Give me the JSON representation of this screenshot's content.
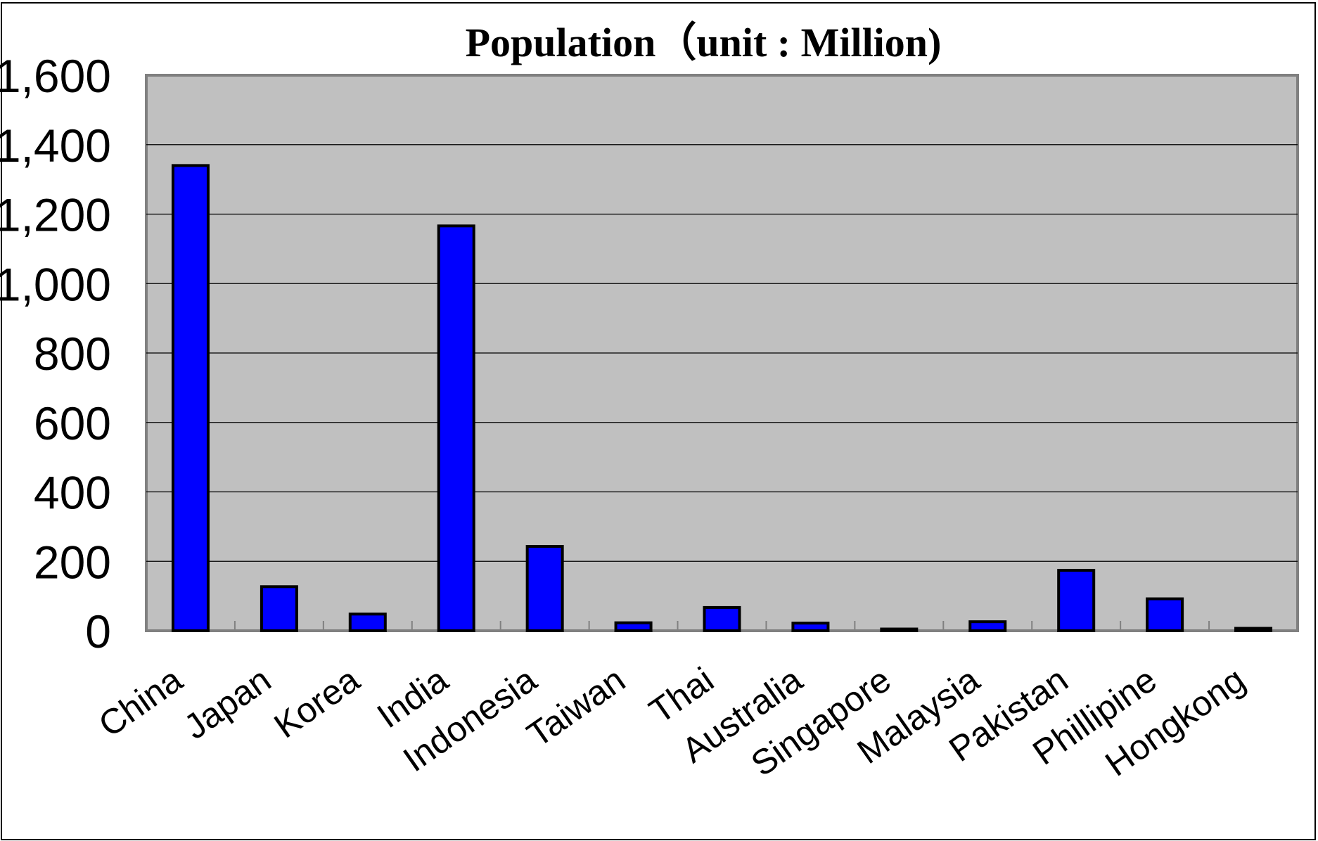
{
  "chart_data": {
    "type": "bar",
    "title": "Population（unit : Million)",
    "xlabel": "",
    "ylabel": "",
    "categories": [
      "China",
      "Japan",
      "Korea",
      "India",
      "Indonesia",
      "Taiwan",
      "Thai",
      "Australia",
      "Singapore",
      "Malaysia",
      "Pakistan",
      "Phillipine",
      "Hongkong"
    ],
    "values": [
      1340,
      127,
      48,
      1166,
      243,
      23,
      67,
      22,
      5,
      26,
      174,
      92,
      7
    ],
    "ylim": [
      0,
      1600
    ],
    "yticks": [
      "0",
      "200",
      "400",
      "600",
      "800",
      "1,000",
      "1,200",
      "1,400",
      "1,600"
    ],
    "grid": true,
    "legend": "none",
    "colors": {
      "bar": "#0000ff",
      "plot_background": "#c0c0c0",
      "page_background": "#ffffff",
      "outline": "#000000"
    }
  }
}
